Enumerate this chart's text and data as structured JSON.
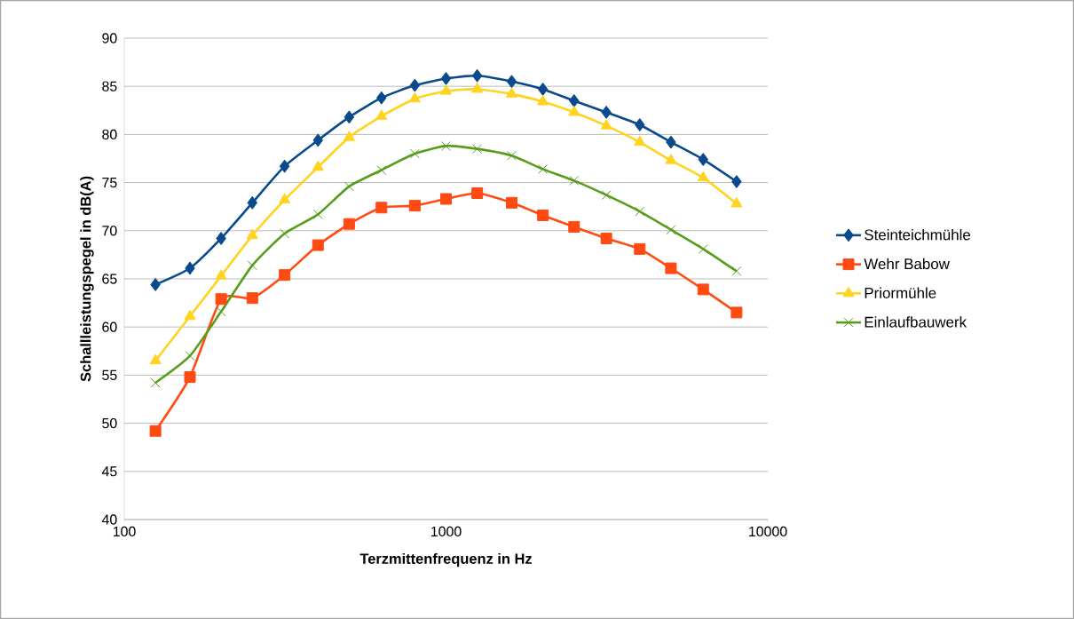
{
  "chart_data": {
    "type": "line",
    "xlabel": "Terzmittenfrequenz in Hz",
    "ylabel": "Schallleistungspegel in dB(A)",
    "x": [
      125,
      160,
      200,
      250,
      315,
      400,
      500,
      630,
      800,
      1000,
      1250,
      1600,
      2000,
      2500,
      3150,
      4000,
      5000,
      6300,
      8000
    ],
    "log": "x",
    "xlim": [
      100,
      10000
    ],
    "xticks": [
      100,
      1000,
      10000
    ],
    "ylim": [
      40,
      90
    ],
    "yticks": [
      40,
      45,
      50,
      55,
      60,
      65,
      70,
      75,
      80,
      85,
      90
    ],
    "grid": "y",
    "legend": "right",
    "series": [
      {
        "name": "Steinteichmühle",
        "color": "#0a4a8c",
        "marker": "diamond",
        "values": [
          64.4,
          66.1,
          69.2,
          72.9,
          76.7,
          79.4,
          81.8,
          83.8,
          85.1,
          85.8,
          86.1,
          85.5,
          84.7,
          83.5,
          82.3,
          81.0,
          79.2,
          77.4,
          75.1
        ]
      },
      {
        "name": "Wehr Babow",
        "color": "#ff4a12",
        "marker": "square",
        "values": [
          49.2,
          54.8,
          62.9,
          63.0,
          65.4,
          68.5,
          70.7,
          72.4,
          72.6,
          73.3,
          73.9,
          72.9,
          71.6,
          70.4,
          69.2,
          68.1,
          66.1,
          63.9,
          61.5
        ]
      },
      {
        "name": "Priormühle",
        "color": "#ffd320",
        "marker": "triangle",
        "values": [
          56.5,
          61.1,
          65.3,
          69.5,
          73.2,
          76.6,
          79.7,
          81.9,
          83.7,
          84.5,
          84.7,
          84.2,
          83.4,
          82.3,
          80.9,
          79.2,
          77.3,
          75.5,
          72.8
        ]
      },
      {
        "name": "Einlaufbauwerk",
        "color": "#579d1c",
        "marker": "cross",
        "values": [
          54.2,
          57.0,
          61.6,
          66.4,
          69.7,
          71.7,
          74.6,
          76.3,
          78.0,
          78.8,
          78.5,
          77.8,
          76.4,
          75.2,
          73.7,
          72.0,
          70.1,
          68.1,
          65.8
        ]
      }
    ]
  }
}
